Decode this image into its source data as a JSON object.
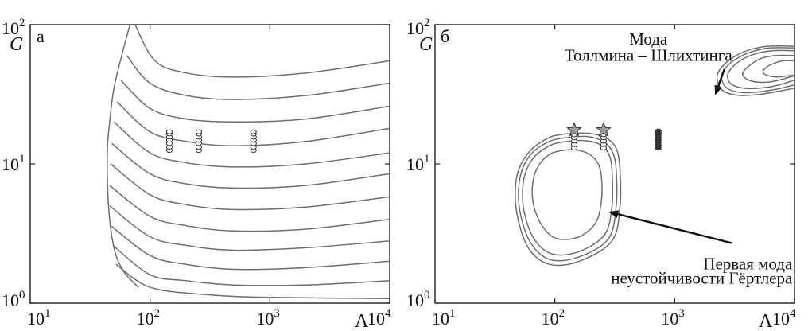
{
  "chart_data": [
    {
      "type": "contour",
      "panel_label": "а",
      "xlabel": "Λ",
      "ylabel": "G",
      "x_scale": "log",
      "y_scale": "log",
      "xlim": [
        10,
        10000
      ],
      "ylim": [
        1,
        100
      ],
      "grid": false,
      "x_ticks": [
        {
          "value": 10,
          "base": "10",
          "exp": "1"
        },
        {
          "value": 100,
          "base": "10",
          "exp": "2"
        },
        {
          "value": 1000,
          "base": "10",
          "exp": "3"
        },
        {
          "value": 10000,
          "base": "10",
          "exp": "4"
        }
      ],
      "y_ticks": [
        {
          "value": 1,
          "base": "10",
          "exp": "0"
        },
        {
          "value": 10,
          "base": "10",
          "exp": "1"
        },
        {
          "value": 100,
          "base": "10",
          "exp": "2"
        }
      ],
      "contours": [
        {
          "points": [
            [
              68,
              100
            ],
            [
              58,
              60
            ],
            [
              50,
              35
            ],
            [
              46,
              20
            ],
            [
              44,
              12
            ],
            [
              45,
              5
            ],
            [
              50,
              2.5
            ],
            [
              60,
              1.7
            ],
            [
              80,
              1.3
            ]
          ]
        },
        {
          "points": [
            [
              75,
              100
            ],
            [
              110,
              55
            ],
            [
              200,
              45
            ],
            [
              500,
              42
            ],
            [
              2000,
              45
            ],
            [
              10000,
              55
            ]
          ]
        },
        {
          "points": [
            [
              64,
              60
            ],
            [
              100,
              38
            ],
            [
              200,
              31
            ],
            [
              500,
              29
            ],
            [
              2000,
              31
            ],
            [
              10000,
              38
            ]
          ]
        },
        {
          "points": [
            [
              57,
              40
            ],
            [
              100,
              25
            ],
            [
              200,
              21
            ],
            [
              500,
              20
            ],
            [
              2000,
              21
            ],
            [
              10000,
              26
            ]
          ]
        },
        {
          "points": [
            [
              53,
              28
            ],
            [
              100,
              17
            ],
            [
              200,
              14.5
            ],
            [
              500,
              13.5
            ],
            [
              2000,
              14.5
            ],
            [
              10000,
              18
            ]
          ]
        },
        {
          "points": [
            [
              50,
              20
            ],
            [
              100,
              12
            ],
            [
              200,
              10.2
            ],
            [
              500,
              9.5
            ],
            [
              2000,
              10
            ],
            [
              10000,
              12
            ]
          ]
        },
        {
          "points": [
            [
              48,
              14
            ],
            [
              100,
              8.5
            ],
            [
              200,
              7.2
            ],
            [
              500,
              6.7
            ],
            [
              2000,
              7
            ],
            [
              10000,
              8.5
            ]
          ]
        },
        {
          "points": [
            [
              47,
              10
            ],
            [
              100,
              6
            ],
            [
              200,
              5.1
            ],
            [
              500,
              4.7
            ],
            [
              2000,
              4.9
            ],
            [
              10000,
              5.8
            ]
          ]
        },
        {
          "points": [
            [
              46,
              7
            ],
            [
              100,
              4.2
            ],
            [
              200,
              3.6
            ],
            [
              500,
              3.3
            ],
            [
              2000,
              3.4
            ],
            [
              10000,
              4
            ]
          ]
        },
        {
          "points": [
            [
              46,
              5
            ],
            [
              100,
              3
            ],
            [
              200,
              2.6
            ],
            [
              500,
              2.4
            ],
            [
              2000,
              2.5
            ],
            [
              10000,
              2.8
            ]
          ]
        },
        {
          "points": [
            [
              47,
              3.6
            ],
            [
              100,
              2.2
            ],
            [
              200,
              1.9
            ],
            [
              500,
              1.75
            ],
            [
              2000,
              1.8
            ],
            [
              10000,
              2
            ]
          ]
        },
        {
          "points": [
            [
              49,
              2.6
            ],
            [
              100,
              1.6
            ],
            [
              200,
              1.45
            ],
            [
              500,
              1.35
            ],
            [
              2000,
              1.35
            ],
            [
              10000,
              1.45
            ]
          ]
        },
        {
          "points": [
            [
              52,
              1.9
            ],
            [
              100,
              1.3
            ],
            [
              300,
              1.15
            ],
            [
              1000,
              1.1
            ],
            [
              10000,
              1.08
            ]
          ]
        }
      ],
      "marker_columns": [
        {
          "x": 145,
          "style": "circle",
          "y": [
            12.5,
            13.2,
            14,
            14.8,
            15.6,
            16.4,
            17
          ]
        },
        {
          "x": 255,
          "style": "circle",
          "y": [
            12.5,
            13.2,
            14,
            14.8,
            15.6,
            16.4,
            17
          ]
        },
        {
          "x": 730,
          "style": "circle",
          "y": [
            12.5,
            13.2,
            14,
            14.8,
            15.6,
            16.4,
            17
          ]
        }
      ],
      "annotations": []
    },
    {
      "type": "contour",
      "panel_label": "б",
      "xlabel": "Λ",
      "ylabel": "G",
      "x_scale": "log",
      "y_scale": "log",
      "xlim": [
        10,
        10000
      ],
      "ylim": [
        1,
        100
      ],
      "grid": false,
      "x_ticks": [
        {
          "value": 10,
          "base": "10",
          "exp": "1"
        },
        {
          "value": 100,
          "base": "10",
          "exp": "2"
        },
        {
          "value": 1000,
          "base": "10",
          "exp": "3"
        },
        {
          "value": 10000,
          "base": "10",
          "exp": "4"
        }
      ],
      "y_ticks": [
        {
          "value": 1,
          "base": "10",
          "exp": "0"
        },
        {
          "value": 10,
          "base": "10",
          "exp": "1"
        },
        {
          "value": 100,
          "base": "10",
          "exp": "2"
        }
      ],
      "contours": [
        {
          "points": [
            [
              130,
              16.5
            ],
            [
              90,
              15.5
            ],
            [
              60,
              12
            ],
            [
              48,
              8
            ],
            [
              48,
              4.5
            ],
            [
              60,
              2.5
            ],
            [
              90,
              1.9
            ],
            [
              160,
              2
            ],
            [
              300,
              2.8
            ],
            [
              350,
              5
            ],
            [
              350,
              9
            ],
            [
              330,
              12.5
            ],
            [
              280,
              15
            ],
            [
              200,
              16.5
            ],
            [
              130,
              16.5
            ]
          ]
        },
        {
          "points": [
            [
              130,
              15.5
            ],
            [
              90,
              14.5
            ],
            [
              62,
              11.5
            ],
            [
              51,
              7.8
            ],
            [
              51,
              4.6
            ],
            [
              63,
              2.7
            ],
            [
              92,
              2.05
            ],
            [
              160,
              2.15
            ],
            [
              280,
              2.9
            ],
            [
              325,
              5
            ],
            [
              325,
              9
            ],
            [
              305,
              12
            ],
            [
              260,
              14.3
            ],
            [
              190,
              15.7
            ],
            [
              130,
              15.5
            ]
          ]
        },
        {
          "points": [
            [
              125,
              14.5
            ],
            [
              92,
              13.6
            ],
            [
              66,
              11
            ],
            [
              55,
              7.7
            ],
            [
              55,
              4.7
            ],
            [
              67,
              2.9
            ],
            [
              96,
              2.25
            ],
            [
              160,
              2.35
            ],
            [
              260,
              3.1
            ],
            [
              300,
              5
            ],
            [
              300,
              8.8
            ],
            [
              285,
              11.5
            ],
            [
              245,
              13.6
            ],
            [
              180,
              14.7
            ],
            [
              125,
              14.5
            ]
          ]
        },
        {
          "points": [
            [
              115,
              12.5
            ],
            [
              90,
              11.7
            ],
            [
              72,
              9.5
            ],
            [
              65,
              7
            ],
            [
              67,
              4.9
            ],
            [
              80,
              3.5
            ],
            [
              105,
              2.9
            ],
            [
              160,
              3
            ],
            [
              220,
              3.8
            ],
            [
              245,
              5.5
            ],
            [
              245,
              8
            ],
            [
              230,
              10
            ],
            [
              195,
              11.7
            ],
            [
              150,
              12.6
            ],
            [
              115,
              12.5
            ]
          ]
        },
        {
          "points": [
            [
              10000,
              70
            ],
            [
              6000,
              70
            ],
            [
              4000,
              65
            ],
            [
              2800,
              55
            ],
            [
              2300,
              45
            ],
            [
              2300,
              38
            ],
            [
              2600,
              33
            ],
            [
              3500,
              31
            ],
            [
              5000,
              31.5
            ],
            [
              7000,
              33
            ],
            [
              10000,
              35
            ]
          ]
        },
        {
          "points": [
            [
              10000,
              68
            ],
            [
              6200,
              68
            ],
            [
              4200,
              63
            ],
            [
              3000,
              54
            ],
            [
              2500,
              45
            ],
            [
              2500,
              39
            ],
            [
              2800,
              34.5
            ],
            [
              3700,
              32.5
            ],
            [
              5200,
              33
            ],
            [
              7200,
              34.5
            ],
            [
              10000,
              37
            ]
          ]
        },
        {
          "points": [
            [
              10000,
              65
            ],
            [
              6500,
              65
            ],
            [
              4500,
              61
            ],
            [
              3300,
              53
            ],
            [
              2800,
              45
            ],
            [
              2800,
              40
            ],
            [
              3100,
              36.5
            ],
            [
              4000,
              34.8
            ],
            [
              5500,
              35.2
            ],
            [
              7500,
              37
            ],
            [
              10000,
              40
            ]
          ]
        },
        {
          "points": [
            [
              10000,
              60
            ],
            [
              7000,
              60
            ],
            [
              5200,
              57
            ],
            [
              4100,
              50
            ],
            [
              3700,
              45
            ],
            [
              3800,
              42
            ],
            [
              4300,
              39.5
            ],
            [
              5500,
              38.5
            ],
            [
              7000,
              39.5
            ],
            [
              10000,
              43
            ]
          ]
        },
        {
          "points": [
            [
              10000,
              55
            ],
            [
              8000,
              55
            ],
            [
              6500,
              52
            ],
            [
              5600,
              48
            ],
            [
              5500,
              45
            ],
            [
              6000,
              43
            ],
            [
              7300,
              42.2
            ],
            [
              10000,
              43.5
            ]
          ]
        }
      ],
      "marker_columns": [
        {
          "x": 145,
          "style": "circle",
          "y": [
            13,
            13.8,
            14.6,
            15.4,
            16.2
          ]
        },
        {
          "x": 255,
          "style": "circle",
          "y": [
            13,
            13.8,
            14.6,
            15.4,
            16.2
          ]
        },
        {
          "x": 730,
          "style": "filled",
          "y": [
            13,
            13.6,
            14.2,
            14.8,
            15.4,
            16,
            16.6,
            17.2
          ]
        }
      ],
      "stars": [
        {
          "x": 145,
          "y": 17.5
        },
        {
          "x": 255,
          "y": 17.5
        }
      ],
      "annotations": [
        {
          "lines": [
            "Мода",
            "Толлмина – Шлихтинга"
          ],
          "text_x": 3000,
          "text_y": [
            72,
            55
          ],
          "anchor": "end-center",
          "arrow_from": [
            2600,
            48
          ],
          "arrow_to": [
            2200,
            32
          ]
        },
        {
          "lines": [
            "Первая мода",
            "неустойчивости Гёртлера"
          ],
          "text_x": 9600,
          "text_y": [
            1.75,
            1.38
          ],
          "anchor": "end",
          "arrow_from": [
            3000,
            2.7
          ],
          "arrow_to": [
            290,
            4.5
          ]
        }
      ]
    }
  ]
}
